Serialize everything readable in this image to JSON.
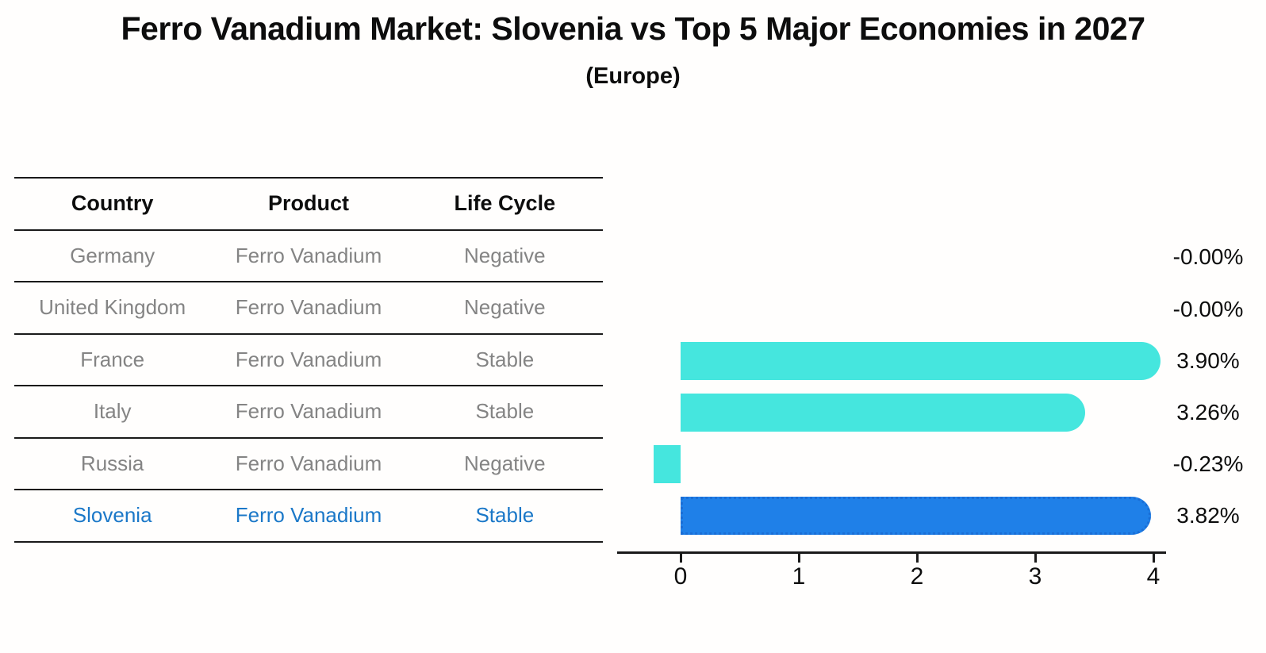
{
  "title": "Ferro Vanadium Market: Slovenia vs Top 5 Major Economies in 2027",
  "subtitle": "(Europe)",
  "table": {
    "headers": [
      "Country",
      "Product",
      "Life Cycle"
    ],
    "rows": [
      {
        "country": "Germany",
        "product": "Ferro Vanadium",
        "life_cycle": "Negative",
        "highlight": false
      },
      {
        "country": "United Kingdom",
        "product": "Ferro Vanadium",
        "life_cycle": "Negative",
        "highlight": false
      },
      {
        "country": "France",
        "product": "Ferro Vanadium",
        "life_cycle": "Stable",
        "highlight": false
      },
      {
        "country": "Italy",
        "product": "Ferro Vanadium",
        "life_cycle": "Stable",
        "highlight": false
      },
      {
        "country": "Russia",
        "product": "Ferro Vanadium",
        "life_cycle": "Negative",
        "highlight": false
      },
      {
        "country": "Slovenia",
        "product": "Ferro Vanadium",
        "life_cycle": "Stable",
        "highlight": true
      }
    ]
  },
  "chart_data": {
    "type": "bar",
    "orientation": "horizontal",
    "title": "Ferro Vanadium Market: Slovenia vs Top 5 Major Economies in 2027",
    "subtitle": "(Europe)",
    "categories": [
      "Germany",
      "United Kingdom",
      "France",
      "Italy",
      "Russia",
      "Slovenia"
    ],
    "values": [
      -0.0,
      -0.0,
      3.9,
      3.26,
      -0.23,
      3.82
    ],
    "value_labels": [
      "-0.00%",
      "-0.00%",
      "3.90%",
      "3.26%",
      "-0.23%",
      "3.82%"
    ],
    "xlabel": "",
    "ylabel": "",
    "xticks": [
      0,
      1,
      2,
      3,
      4
    ],
    "xlim": [
      -0.54,
      4.11
    ],
    "grid": false,
    "legend": "none",
    "highlight_index": 5,
    "colors": {
      "bar_default": "#45e6de",
      "bar_highlight": "#1f80e8",
      "bar_highlight_edge": "#1a6ed6",
      "text_muted": "#848484",
      "text_highlight": "#1b78c8",
      "axis": "#1a1a1a",
      "label_text": "#0d0d0d"
    }
  }
}
